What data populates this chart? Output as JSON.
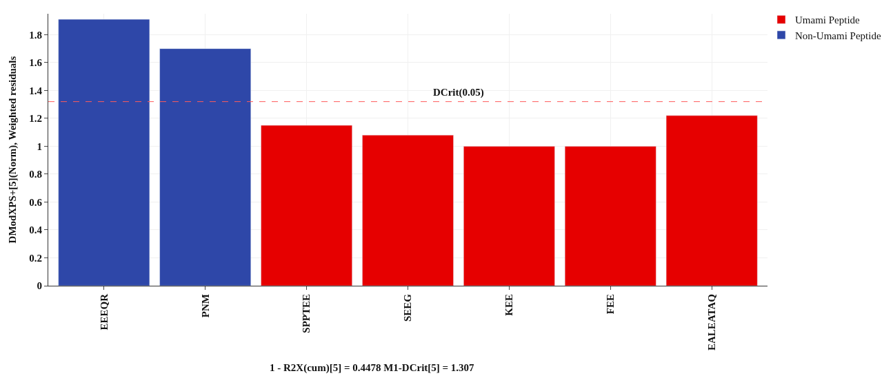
{
  "chart_data": {
    "type": "bar",
    "ylabel": "DModXPS+[5](Norm), Weighted residuals",
    "categories": [
      "EEEQR",
      "PNM",
      "SPPTEE",
      "SEEG",
      "KEE",
      "FEE",
      "EALEATAQ"
    ],
    "series": [
      {
        "name": "Umami Peptide",
        "color": "#e60000",
        "values": [
          null,
          null,
          1.15,
          1.08,
          1.0,
          1.0,
          1.22
        ]
      },
      {
        "name": "Non-Umami Peptide",
        "color": "#2e47a8",
        "values": [
          1.91,
          1.7,
          null,
          null,
          null,
          null,
          null
        ]
      }
    ],
    "ylim": [
      0,
      1.95
    ],
    "yticks": [
      0,
      0.2,
      0.4,
      0.6,
      0.8,
      {
        "value": 1,
        "label": "1"
      },
      1.2,
      1.4,
      1.6,
      1.8
    ],
    "ref_lines": [
      {
        "axis": "y",
        "value": 1.32,
        "label": "DCrit(0.05)",
        "color": "#ff5a5a",
        "line_style": "dashed"
      }
    ],
    "annotations": [
      "1 - R2X(cum)[5] = 0.4478 M1-DCrit[5] = 1.307"
    ],
    "grid": true,
    "legend": "top right"
  }
}
